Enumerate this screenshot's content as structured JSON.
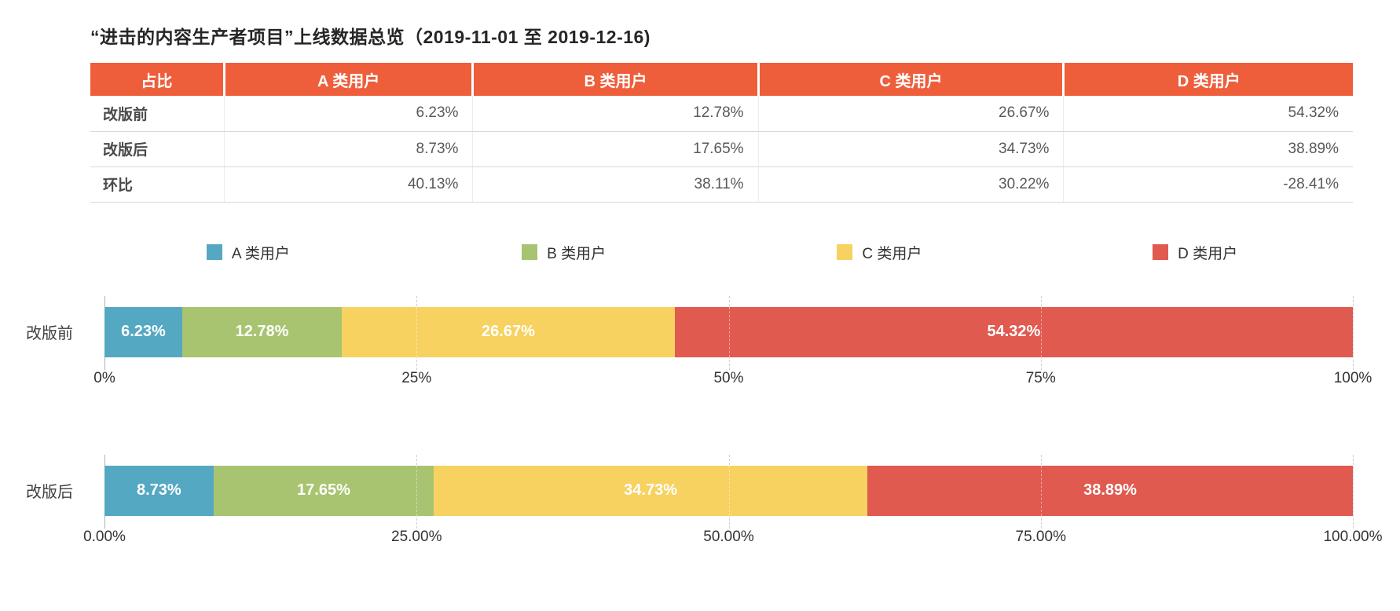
{
  "title": "“进击的内容生产者项目”上线数据总览（2019-11-01 至 2019-12-16)",
  "colors": {
    "header_bg": "#EE5E3B",
    "series_a": "#54A8C2",
    "series_b": "#A8C470",
    "series_c": "#F7D261",
    "series_d": "#E05A50"
  },
  "table": {
    "headers": [
      "占比",
      "A 类用户",
      "B 类用户",
      "C 类用户",
      "D 类用户"
    ],
    "rows": [
      {
        "label": "改版前",
        "values": [
          "6.23%",
          "12.78%",
          "26.67%",
          "54.32%"
        ]
      },
      {
        "label": "改版后",
        "values": [
          "8.73%",
          "17.65%",
          "34.73%",
          "38.89%"
        ]
      },
      {
        "label": "环比",
        "values": [
          "40.13%",
          "38.11%",
          "30.22%",
          "-28.41%"
        ]
      }
    ]
  },
  "legend": [
    {
      "label": "A 类用户",
      "color": "#54A8C2"
    },
    {
      "label": "B 类用户",
      "color": "#A8C470"
    },
    {
      "label": "C 类用户",
      "color": "#F7D261"
    },
    {
      "label": "D 类用户",
      "color": "#E05A50"
    }
  ],
  "charts": [
    {
      "row_label": "改版前",
      "segments": [
        {
          "label": "6.23%",
          "value": 6.23,
          "color": "#54A8C2"
        },
        {
          "label": "12.78%",
          "value": 12.78,
          "color": "#A8C470"
        },
        {
          "label": "26.67%",
          "value": 26.67,
          "color": "#F7D261"
        },
        {
          "label": "54.32%",
          "value": 54.32,
          "color": "#E05A50"
        }
      ],
      "ticks": [
        "0%",
        "25%",
        "50%",
        "75%",
        "100%"
      ]
    },
    {
      "row_label": "改版后",
      "segments": [
        {
          "label": "8.73%",
          "value": 8.73,
          "color": "#54A8C2"
        },
        {
          "label": "17.65%",
          "value": 17.65,
          "color": "#A8C470"
        },
        {
          "label": "34.73%",
          "value": 34.73,
          "color": "#F7D261"
        },
        {
          "label": "38.89%",
          "value": 38.89,
          "color": "#E05A50"
        }
      ],
      "ticks": [
        "0.00%",
        "25.00%",
        "50.00%",
        "75.00%",
        "100.00%"
      ]
    }
  ],
  "chart_data": {
    "type": "bar",
    "orientation": "horizontal",
    "stacked": true,
    "title": "“进击的内容生产者项目”上线数据总览（2019-11-01 至 2019-12-16)",
    "categories": [
      "改版前",
      "改版后"
    ],
    "series": [
      {
        "name": "A 类用户",
        "values": [
          6.23,
          8.73
        ],
        "color": "#54A8C2"
      },
      {
        "name": "B 类用户",
        "values": [
          12.78,
          17.65
        ],
        "color": "#A8C470"
      },
      {
        "name": "C 类用户",
        "values": [
          26.67,
          34.73
        ],
        "color": "#F7D261"
      },
      {
        "name": "D 类用户",
        "values": [
          54.32,
          38.89
        ],
        "color": "#E05A50"
      }
    ],
    "mom_change": {
      "label": "环比",
      "values": [
        40.13,
        38.11,
        30.22,
        -28.41
      ]
    },
    "xlim": [
      0,
      100
    ],
    "x_ticks_chart1": [
      "0%",
      "25%",
      "50%",
      "75%",
      "100%"
    ],
    "x_ticks_chart2": [
      "0.00%",
      "25.00%",
      "50.00%",
      "75.00%",
      "100.00%"
    ],
    "grid": "dashed-vertical",
    "legend_position": "top",
    "data_labels": "inside-white-bold"
  }
}
